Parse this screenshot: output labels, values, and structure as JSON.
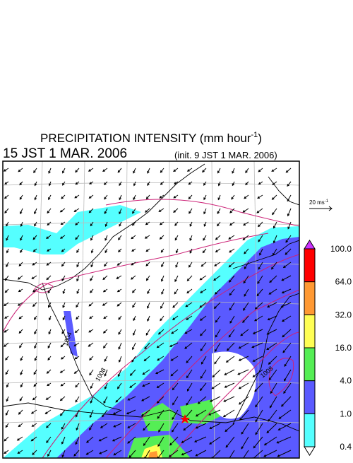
{
  "title": {
    "text": "PRECIPITATION INTENSITY (mm hour",
    "superscript": "-1",
    "close": ")"
  },
  "valid_time": "15 JST 1 MAR. 2006",
  "init_time": "(init. 9 JST 1 MAR. 2006)",
  "wind_scale": {
    "text": "20 ms",
    "superscript": "-1"
  },
  "legend": {
    "labels": [
      "100.0",
      "64.0",
      "32.0",
      "16.0",
      "4.0",
      "1.0",
      "0.4"
    ],
    "colors": [
      "#ff0000",
      "#ff9933",
      "#ffff55",
      "#55ee55",
      "#5a5aff",
      "#55ffff"
    ],
    "over_color": "#cc33ff",
    "under_color": "#ffffff"
  },
  "contour_labels": [
    "1008",
    "1004",
    "1008"
  ]
}
